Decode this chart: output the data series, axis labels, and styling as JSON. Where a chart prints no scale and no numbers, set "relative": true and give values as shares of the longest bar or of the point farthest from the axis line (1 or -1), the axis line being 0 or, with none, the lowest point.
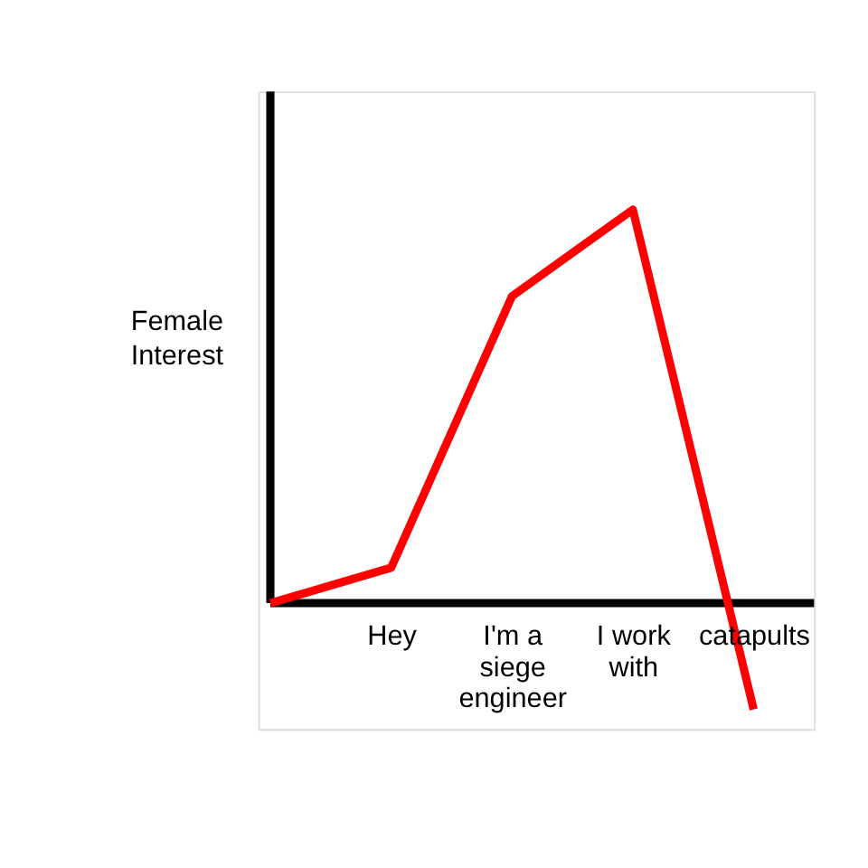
{
  "chart_data": {
    "type": "line",
    "relative": true,
    "ylabel": "Female Interest",
    "categories": [
      null,
      "Hey",
      "I'm a siege engineer",
      "I work with",
      "catapults"
    ],
    "series": [
      {
        "color": "#ff0000",
        "values": [
          0,
          0.09,
          0.78,
          1,
          -0.27
        ]
      }
    ],
    "marker": "none",
    "line_style": "solid",
    "grid": false,
    "legend": false
  }
}
